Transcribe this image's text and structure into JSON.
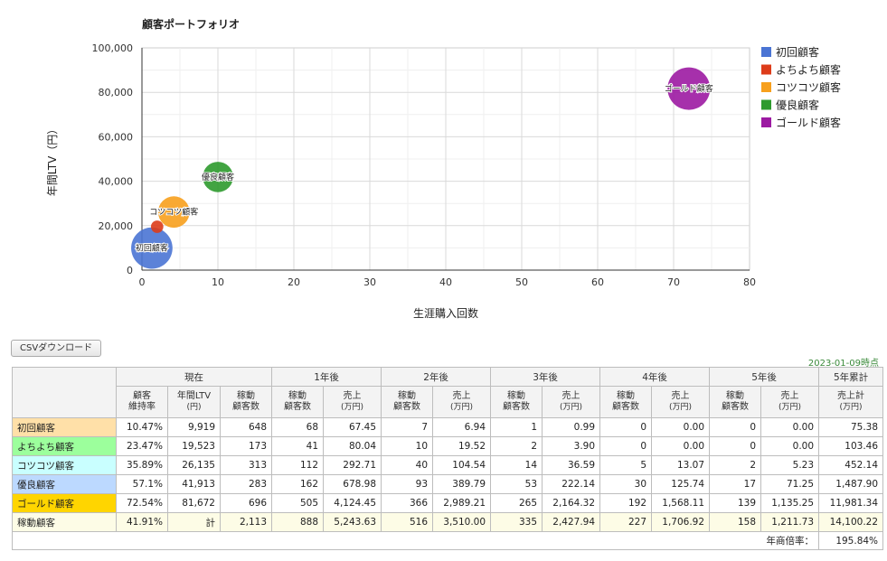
{
  "chart_data": {
    "type": "scatter",
    "title": "顧客ポートフォリオ",
    "xlabel": "生涯購入回数",
    "ylabel": "年間LTV（円）",
    "xlim": [
      0,
      80
    ],
    "ylim": [
      0,
      100000
    ],
    "x_ticks": [
      "0",
      "10",
      "20",
      "30",
      "40",
      "50",
      "60",
      "70",
      "80"
    ],
    "y_ticks": [
      "0",
      "20,000",
      "40,000",
      "60,000",
      "80,000",
      "100,000"
    ],
    "grid": true,
    "legend_position": "right",
    "series": [
      {
        "name": "初回顧客",
        "color": "#4a74d4",
        "x": 1.3,
        "y": 9919,
        "label": "初回顧客"
      },
      {
        "name": "よちよち顧客",
        "color": "#dd3c1a",
        "x": 2.0,
        "y": 19523,
        "label": ""
      },
      {
        "name": "コツコツ顧客",
        "color": "#f7a01d",
        "x": 4.2,
        "y": 26135,
        "label": "コツコツ顧客"
      },
      {
        "name": "優良顧客",
        "color": "#2e9a2e",
        "x": 10.0,
        "y": 41913,
        "label": "優良顧客"
      },
      {
        "name": "ゴールド顧客",
        "color": "#9c1aa2",
        "x": 72.0,
        "y": 81672,
        "label": "ゴールド顧客"
      }
    ]
  },
  "csv_button": "CSVダウンロード",
  "as_of": "2023-01-09時点",
  "table": {
    "groups": [
      "現在",
      "1年後",
      "2年後",
      "3年後",
      "4年後",
      "5年後",
      "5年累計"
    ],
    "sub": {
      "retention": [
        "顧客",
        "維持率"
      ],
      "ltv": [
        "年間LTV",
        "(円)"
      ],
      "active": [
        "稼動",
        "顧客数"
      ],
      "sales": [
        "売上",
        "(万円)"
      ],
      "total": [
        "売上計",
        "(万円)"
      ]
    },
    "rows": [
      {
        "label": "初回顧客",
        "bg": "#ffe0a8",
        "cells": [
          "10.47%",
          "9,919",
          "648",
          "68",
          "67.45",
          "7",
          "6.94",
          "1",
          "0.99",
          "0",
          "0.00",
          "0",
          "0.00",
          "75.38"
        ]
      },
      {
        "label": "よちよち顧客",
        "bg": "#9cff9c",
        "cells": [
          "23.47%",
          "19,523",
          "173",
          "41",
          "80.04",
          "10",
          "19.52",
          "2",
          "3.90",
          "0",
          "0.00",
          "0",
          "0.00",
          "103.46"
        ]
      },
      {
        "label": "コツコツ顧客",
        "bg": "#c9ffff",
        "cells": [
          "35.89%",
          "26,135",
          "313",
          "112",
          "292.71",
          "40",
          "104.54",
          "14",
          "36.59",
          "5",
          "13.07",
          "2",
          "5.23",
          "452.14"
        ]
      },
      {
        "label": "優良顧客",
        "bg": "#bcd9ff",
        "cells": [
          "57.1%",
          "41,913",
          "283",
          "162",
          "678.98",
          "93",
          "389.79",
          "53",
          "222.14",
          "30",
          "125.74",
          "17",
          "71.25",
          "1,487.90"
        ]
      },
      {
        "label": "ゴールド顧客",
        "bg": "#ffd500",
        "cells": [
          "72.54%",
          "81,672",
          "696",
          "505",
          "4,124.45",
          "366",
          "2,989.21",
          "265",
          "2,164.32",
          "192",
          "1,568.11",
          "139",
          "1,135.25",
          "11,981.34"
        ]
      }
    ],
    "total_row": {
      "label": "稼動顧客",
      "bg": "#fdfce6",
      "cells": [
        "41.91%",
        "計",
        "2,113",
        "888",
        "5,243.63",
        "516",
        "3,510.00",
        "335",
        "2,427.94",
        "227",
        "1,706.92",
        "158",
        "1,211.73",
        "14,100.22"
      ]
    },
    "footer": {
      "label": "年商倍率：",
      "value": "195.84%"
    }
  }
}
